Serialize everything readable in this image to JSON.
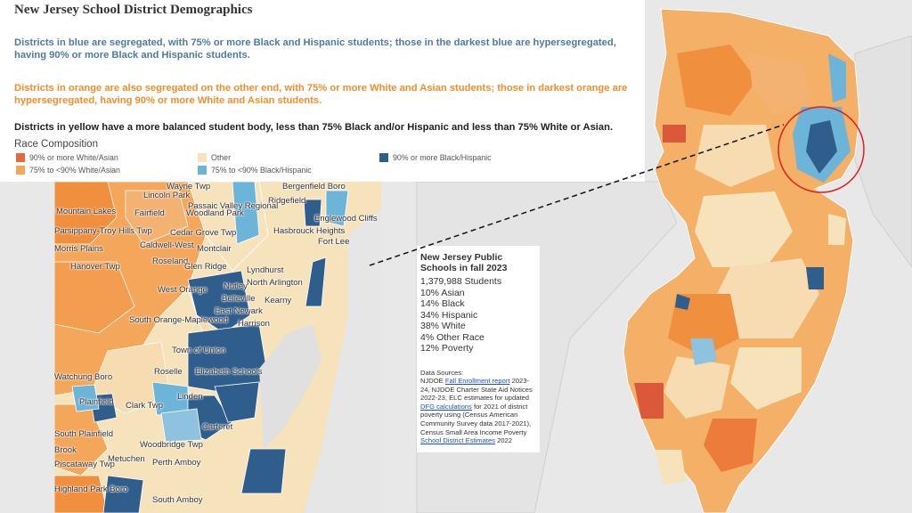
{
  "header": {
    "title": "New Jersey School District Demographics",
    "blue_text": "Districts in blue are segregated, with 75% or more Black and Hispanic students; those in the darkest blue are hypersegregated, having 90% or more Black and Hispanic students.",
    "orange_text": "Districts in orange are also segregated on the other end, with 75% or more White and Asian students; those in darkest orange are hypersegregated, having 90% or more White and Asian students.",
    "yellow_text": "Districts in yellow have a more balanced student body, less than 75% Black and/or Hispanic and less than 75% White or Asian."
  },
  "legend": {
    "title": "Race Composition",
    "items": [
      {
        "label": "90% or more White/Asian",
        "color": "#e06c3c"
      },
      {
        "label": "75% to <90% White/Asian",
        "color": "#f4a65a"
      },
      {
        "label": "Other",
        "color": "#f6e3bc"
      },
      {
        "label": "75% to <90% Black/Hispanic",
        "color": "#6cb4d8"
      },
      {
        "label": "90% or more Black/Hispanic",
        "color": "#2f5d8c"
      }
    ]
  },
  "info": {
    "title_line1": "New Jersey Public",
    "title_line2": "Schools in fall 2023",
    "stats": [
      "1,379,988 Students",
      "10% Asian",
      "14% Black",
      "34% Hispanic",
      "38% White",
      "4% Other Race",
      "12% Poverty"
    ],
    "sources_label": "Data Sources:",
    "src_a": "NJDOE",
    "src_link1": "Fall Enrollment report",
    "src_b": "2023-24, NJDOE Charter State Aid Notices 2022-23, ELC estimates for updated",
    "src_link2": "DFG calculations",
    "src_c": "for 2021 of district poverty using (Census American Community Survey data 2017-2021), Census Small Area Income Poverty",
    "src_link3": "School District Estimates",
    "src_d": "2022"
  },
  "inset_places": {
    "p1": "Wayne Twp",
    "p2": "Lincoln Park",
    "p3": "Passaic Valley Regional",
    "p4": "Mountain Lakes",
    "p5": "Fairfield",
    "p6": "Woodland Park",
    "p7": "Englewood Cliffs",
    "p8": "Parsippany-Troy Hills Twp",
    "p9": "Cedar Grove Twp",
    "p10": "Caldwell-West",
    "p11": "Montclair",
    "p12": "Hasbrouck Heights",
    "p13": "Fort Lee",
    "p14": "Hanover Twp",
    "p15": "Glen Ridge",
    "p16": "Lyndhurst",
    "p17": "Nutley",
    "p18": "West Orange",
    "p19": "North Arlington",
    "p20": "Kearny",
    "p21": "South Orange-Maplewood",
    "p22": "East Newark",
    "p23": "Harrison",
    "p24": "Town of Union",
    "p25": "Roselle",
    "p26": "Elizabeth Schools",
    "p27": "Watchung Boro",
    "p28": "Linden",
    "p29": "Clark Twp",
    "p30": "Plainfield",
    "p31": "Carteret",
    "p32": "South Plainfield",
    "p33": "Woodbridge Twp",
    "p34": "Brook",
    "p35": "Metuchen",
    "p36": "Perth Amboy",
    "p37": "Piscataway Twp",
    "p38": "Highland Park Boro",
    "p39": "South Amboy",
    "p40": "Bergenfield Boro",
    "p41": "Ridgefield",
    "p42": "Morris Plains",
    "p43": "Roseland",
    "p44": "Belleville"
  }
}
